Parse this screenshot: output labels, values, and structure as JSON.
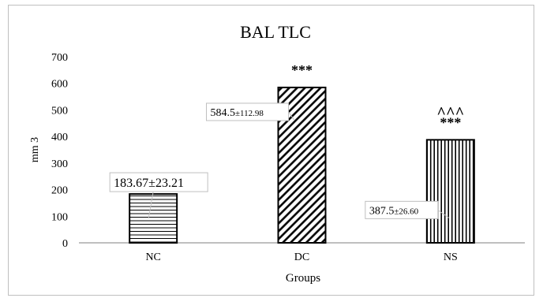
{
  "chart_data": {
    "type": "bar",
    "title": "BAL  TLC",
    "xlabel": "Groups",
    "ylabel": "mm 3",
    "ylim": [
      0,
      700
    ],
    "yticks": [
      0,
      100,
      200,
      300,
      400,
      500,
      600,
      700
    ],
    "grid": false,
    "categories": [
      "NC",
      "DC",
      "NS"
    ],
    "values": [
      183.67,
      584.5,
      387.5
    ],
    "errors": [
      23.21,
      112.98,
      26.6
    ],
    "value_labels": [
      {
        "main": "183.67±23.21",
        "sub": ""
      },
      {
        "main": "584.5",
        "sub": "±112.98"
      },
      {
        "main": "387.5",
        "sub": "±26.60"
      }
    ],
    "significance": [
      {
        "category": "NC",
        "marks": []
      },
      {
        "category": "DC",
        "marks": [
          "***"
        ]
      },
      {
        "category": "NS",
        "marks": [
          "^^^",
          "***"
        ]
      }
    ],
    "patterns": [
      "horizontal",
      "diagonal",
      "vertical"
    ],
    "colors": {
      "bar_stroke": "#000000",
      "axis": "#7f7f7f",
      "label_box": "#bfbfbf"
    }
  }
}
